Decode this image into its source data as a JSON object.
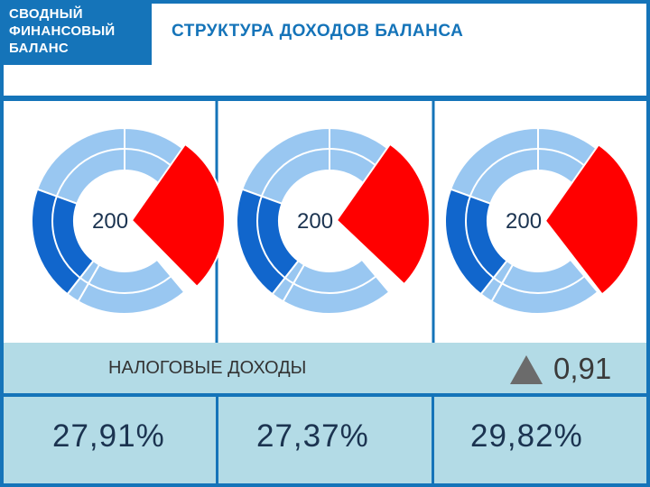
{
  "header": {
    "logo_lines": [
      "СВОДНЫЙ",
      "ФИНАНСОВЫЙ",
      "БАЛАНС"
    ],
    "title": "СТРУКТУРА ДОХОДОВ БАЛАНСА"
  },
  "colors": {
    "brand_blue": "#1574b9",
    "highlight_red": "#ff0000",
    "light_ring": "#99c7f1",
    "dark_ring": "#1166cc",
    "band": "#b3dbe6"
  },
  "chart_data": {
    "type": "donut",
    "category_label": "НАЛОГОВЫЕ ДОХОДЫ",
    "delta_value": "0,91",
    "charts": [
      {
        "year_label": "200",
        "highlight_value": 27.91,
        "value_label": "27,91%"
      },
      {
        "year_label": "200",
        "highlight_value": 27.37,
        "value_label": "27,37%"
      },
      {
        "year_label": "200",
        "highlight_value": 29.82,
        "value_label": "29,82%"
      }
    ]
  }
}
